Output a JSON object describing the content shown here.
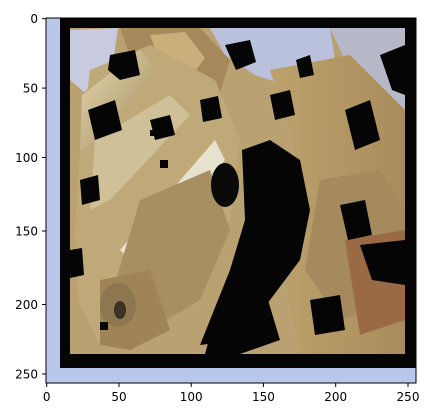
{
  "figure": {
    "image_content": "pixelated photograph of horse heads with a dark border frame",
    "x_axis": {
      "ticks": [
        0,
        50,
        100,
        150,
        200,
        250
      ],
      "tick_labels": [
        "0",
        "50",
        "100",
        "150",
        "200",
        "250"
      ],
      "range": [
        0,
        256
      ]
    },
    "y_axis": {
      "ticks": [
        0,
        50,
        100,
        150,
        200,
        250
      ],
      "tick_labels": [
        "0",
        "50",
        "100",
        "150",
        "200",
        "250"
      ],
      "range": [
        0,
        256
      ]
    }
  },
  "colors": {
    "frame": "#050505",
    "light_border": "#b7c8ea",
    "horse_tan": "#b9a171",
    "horse_light": "#d5c8a3",
    "horse_shadow": "#6a5a3a",
    "sky_blue": "#b7c3e8",
    "reddish": "#9a6240"
  }
}
